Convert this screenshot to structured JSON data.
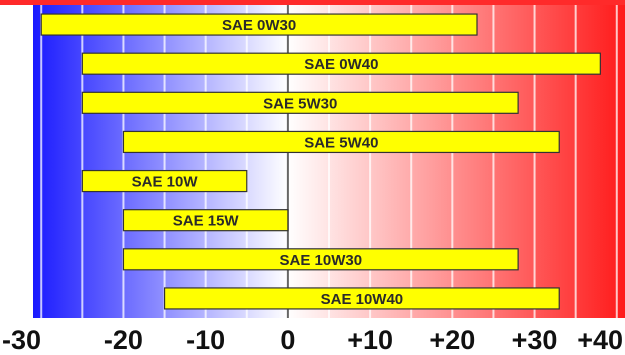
{
  "chart_data": {
    "type": "bar",
    "orientation": "horizontal",
    "title": "",
    "xlabel": "",
    "ylabel": "",
    "xlim": [
      -31,
      41
    ],
    "ticks": [
      -30,
      -20,
      -10,
      0,
      10,
      20,
      30,
      40
    ],
    "tick_labels": [
      "-30",
      "-20",
      "-10",
      "0",
      "+10",
      "+20",
      "+30",
      "+40"
    ],
    "categories": [
      "SAE 0W30",
      "SAE 0W40",
      "SAE 5W30",
      "SAE 5W40",
      "SAE 10W",
      "SAE 15W",
      "SAE 10W30",
      "SAE 10W40"
    ],
    "ranges": [
      [
        -30,
        23
      ],
      [
        -25,
        38
      ],
      [
        -25,
        28
      ],
      [
        -20,
        33
      ],
      [
        -25,
        -5
      ],
      [
        -20,
        0
      ],
      [
        -20,
        28
      ],
      [
        -15,
        33
      ]
    ],
    "grid": true,
    "colors": {
      "bar_fill": "#ffff00",
      "bar_border": "#333333",
      "cold": "#1a1aff",
      "neutral": "#ffffff",
      "hot": "#ff1a1a",
      "top_bar": "#ff2a2a"
    }
  }
}
